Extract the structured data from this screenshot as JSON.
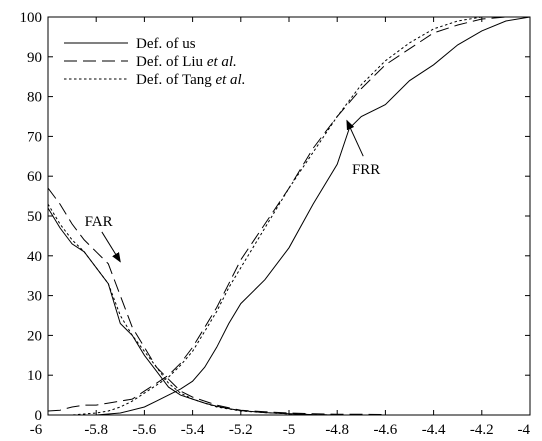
{
  "chart_data": {
    "type": "line",
    "title": "",
    "xlabel": "",
    "ylabel": "",
    "xlim": [
      -6,
      -4
    ],
    "ylim": [
      0,
      100
    ],
    "grid": false,
    "legend_position": "top-left",
    "x_ticks": [
      -6,
      -5.8,
      -5.6,
      -5.4,
      -5.2,
      -5,
      -4.8,
      -4.6,
      -4.4,
      -4.2,
      -4
    ],
    "x_tick_labels": [
      "-6",
      "-5.8",
      "-5.6",
      "-5.4",
      "-5.2",
      "-5",
      "-4.8",
      "-4.6",
      "-4.4",
      "-4.2",
      "-4"
    ],
    "y_ticks": [
      0,
      10,
      20,
      30,
      40,
      50,
      60,
      70,
      80,
      90,
      100
    ],
    "y_tick_labels": [
      "0",
      "10",
      "20",
      "30",
      "40",
      "50",
      "60",
      "70",
      "80",
      "90",
      "100"
    ],
    "series": [
      {
        "name": "Def. of us",
        "legend_prefix": "Def. of us",
        "legend_suffix": "",
        "style": "solid",
        "curves": [
          {
            "kind": "FAR",
            "x": [
              -6,
              -5.95,
              -5.9,
              -5.85,
              -5.8,
              -5.75,
              -5.7,
              -5.65,
              -5.6,
              -5.55,
              -5.5,
              -5.45,
              -5.4,
              -5.35,
              -5.3,
              -5.25,
              -5.2,
              -5.1,
              -5.0,
              -4.9,
              -4.8
            ],
            "y": [
              52,
              47,
              43,
              41,
              37,
              33,
              23,
              20,
              15,
              11,
              7,
              5,
              4,
              3,
              2.2,
              1.6,
              1.1,
              0.6,
              0.3,
              0.1,
              0
            ]
          },
          {
            "kind": "FRR",
            "x": [
              -6,
              -5.9,
              -5.8,
              -5.7,
              -5.6,
              -5.55,
              -5.5,
              -5.45,
              -5.4,
              -5.35,
              -5.3,
              -5.25,
              -5.2,
              -5.1,
              -5.0,
              -4.9,
              -4.8,
              -4.75,
              -4.7,
              -4.6,
              -4.5,
              -4.4,
              -4.3,
              -4.2,
              -4.1,
              -4.0
            ],
            "y": [
              0,
              0,
              0,
              0.5,
              2,
              3.5,
              5,
              6.5,
              8.5,
              12,
              17,
              23,
              28,
              34,
              42,
              53,
              63,
              72,
              75,
              78,
              84,
              88,
              93,
              96.5,
              99,
              100
            ]
          }
        ]
      },
      {
        "name": "Def. of Liu et al.",
        "legend_prefix": "Def. of Liu ",
        "legend_suffix": "et al.",
        "style": "long-dash",
        "curves": [
          {
            "kind": "FAR",
            "x": [
              -6,
              -5.95,
              -5.9,
              -5.85,
              -5.8,
              -5.75,
              -5.7,
              -5.65,
              -5.6,
              -5.55,
              -5.5,
              -5.45,
              -5.4,
              -5.35,
              -5.3,
              -5.25,
              -5.2,
              -5.1,
              -5.0,
              -4.9,
              -4.8,
              -4.7,
              -4.6
            ],
            "y": [
              57,
              53,
              48,
              44,
              41,
              38,
              30,
              22,
              17,
              12,
              9,
              6,
              4.5,
              3.5,
              2.5,
              1.8,
              1.2,
              0.8,
              0.5,
              0.3,
              0.2,
              0.2,
              0.1
            ]
          },
          {
            "kind": "FRR",
            "x": [
              -6,
              -5.95,
              -5.9,
              -5.85,
              -5.8,
              -5.75,
              -5.7,
              -5.65,
              -5.6,
              -5.55,
              -5.5,
              -5.45,
              -5.4,
              -5.35,
              -5.3,
              -5.25,
              -5.2,
              -5.1,
              -5.0,
              -4.9,
              -4.8,
              -4.7,
              -4.6,
              -4.5,
              -4.4,
              -4.3,
              -4.2,
              -4.1
            ],
            "y": [
              1,
              1.2,
              2,
              2.5,
              2.5,
              3,
              3.5,
              4,
              6,
              8,
              10,
              13,
              17,
              22,
              27,
              33,
              39,
              48,
              57,
              67,
              75,
              82,
              88,
              92,
              96,
              98,
              99.5,
              100
            ]
          }
        ]
      },
      {
        "name": "Def. of Tang et al.",
        "legend_prefix": "Def. of Tang ",
        "legend_suffix": "et al.",
        "style": "dotted",
        "curves": [
          {
            "kind": "FAR",
            "x": [
              -6,
              -5.95,
              -5.9,
              -5.85,
              -5.8,
              -5.75,
              -5.7,
              -5.65,
              -5.6,
              -5.55,
              -5.5,
              -5.45,
              -5.4,
              -5.35,
              -5.3,
              -5.25,
              -5.2,
              -5.1,
              -5.0,
              -4.9,
              -4.8
            ],
            "y": [
              53,
              48,
              44,
              41,
              37,
              33,
              25,
              20,
              16,
              12,
              8,
              5.5,
              4,
              3,
              2,
              1.5,
              1,
              0.6,
              0.3,
              0.1,
              0
            ]
          },
          {
            "kind": "FRR",
            "x": [
              -6,
              -5.9,
              -5.8,
              -5.75,
              -5.7,
              -5.65,
              -5.6,
              -5.55,
              -5.5,
              -5.45,
              -5.4,
              -5.35,
              -5.3,
              -5.25,
              -5.2,
              -5.1,
              -5.0,
              -4.9,
              -4.8,
              -4.7,
              -4.6,
              -4.5,
              -4.4,
              -4.3,
              -4.2,
              -4.1
            ],
            "y": [
              0,
              0,
              0.5,
              1,
              2,
              3.5,
              5.5,
              7.5,
              9.5,
              12.5,
              16,
              21,
              26,
              32,
              37,
              47,
              57,
              66,
              75,
              83,
              89,
              93.5,
              97,
              99,
              100,
              100
            ]
          }
        ]
      }
    ],
    "annotations": [
      {
        "text": "FAR",
        "text_at": [
          -5.79,
          47.5
        ],
        "arrow_to": [
          -5.7,
          38.5
        ]
      },
      {
        "text": "FRR",
        "text_at": [
          -4.68,
          60.5
        ],
        "arrow_to": [
          -4.76,
          74
        ]
      }
    ]
  }
}
